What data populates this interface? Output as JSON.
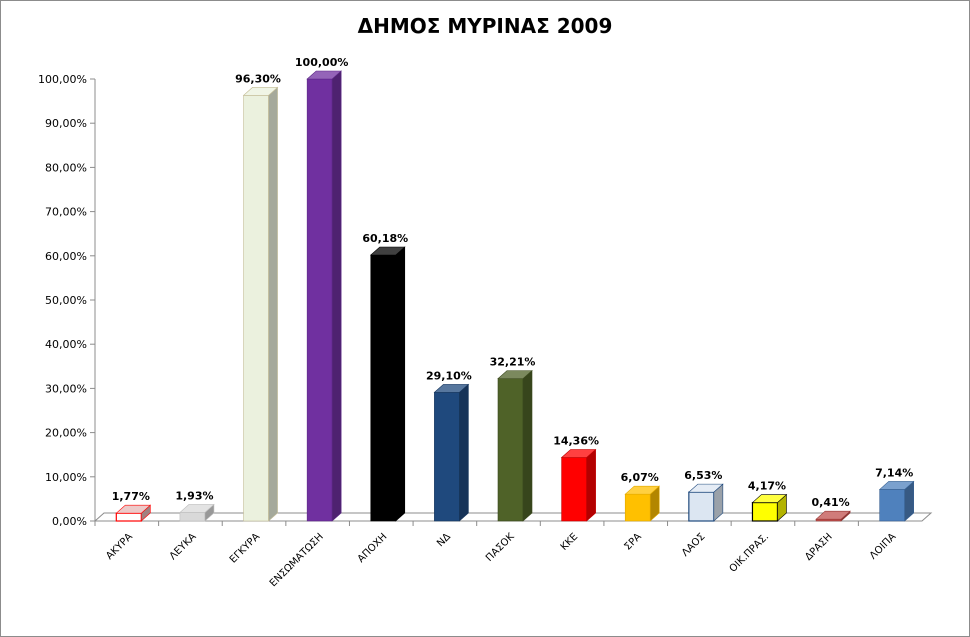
{
  "chart_data": {
    "type": "bar",
    "title": "ΔΗΜΟΣ ΜΥΡΙΝΑΣ 2009",
    "xlabel": "",
    "ylabel": "",
    "ylim": [
      0,
      100
    ],
    "yticks": [
      "0,00%",
      "10,00%",
      "20,00%",
      "30,00%",
      "40,00%",
      "50,00%",
      "60,00%",
      "70,00%",
      "80,00%",
      "90,00%",
      "100,00%"
    ],
    "grid": false,
    "legend": "none",
    "categories": [
      "ΑΚΥΡΑ",
      "ΛΕΥΚΑ",
      "ΕΓΚΥΡΑ",
      "ΕΝΣΩΜΑΤΩΣΗ",
      "ΑΠΟΧΗ",
      "ΝΔ",
      "ΠΑΣΟΚ",
      "ΚΚΕ",
      "ΣΡΑ",
      "ΛΑΟΣ",
      "ΟΙΚ.ΠΡΑΣ.",
      "ΔΡΑΣΗ",
      "ΛΟΙΠΑ"
    ],
    "values": [
      1.77,
      1.93,
      96.3,
      100.0,
      60.18,
      29.1,
      32.21,
      14.36,
      6.07,
      6.53,
      4.17,
      0.41,
      7.14
    ],
    "labels": [
      "1,77%",
      "1,93%",
      "96,30%",
      "100,00%",
      "60,18%",
      "29,10%",
      "32,21%",
      "14,36%",
      "6,07%",
      "6,53%",
      "4,17%",
      "0,41%",
      "7,14%"
    ],
    "colors": [
      "#ffffff",
      "#d9d9d9",
      "#ebf1de",
      "#7030a0",
      "#000000",
      "#1f497d",
      "#4f6228",
      "#ff0000",
      "#ffc000",
      "#dce6f2",
      "#ffff00",
      "#c0504d",
      "#4f81bd"
    ],
    "outline_colors": [
      "#ff0000",
      "#bfbfbf",
      "#c4bd97",
      "#5b2785",
      "#000000",
      "#17365d",
      "#3b4a1e",
      "#c00000",
      "#e0a800",
      "#1f497d",
      "#000000",
      "#963634",
      "#376092"
    ]
  }
}
